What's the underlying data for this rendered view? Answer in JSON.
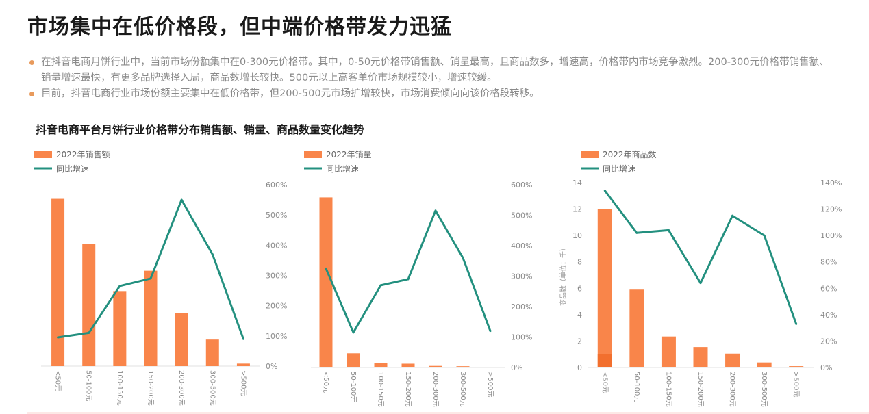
{
  "page": {
    "title": "市场集中在低价格段，但中端价格带发力迅猛",
    "bullets": [
      "在抖音电商月饼行业中，当前市场份额集中在0-300元价格带。其中，0-50元价格带销售额、销量最高，且商品数多，增速高，价格带内市场竞争激烈。200-300元价格带销售额、销量增速最快，有更多品牌选择入局，商品数增长较快。500元以上高客单价市场规模较小，增速较缓。",
      "目前，抖音电商行业市场份额主要集中在低价格带，但200-500元市场扩增较快，市场消费倾向向该价格段转移。"
    ],
    "section_title": "抖音电商平台月饼行业价格带分布销售额、销量、商品数量变化趋势",
    "colors": {
      "bar": "#f9854a",
      "bar_dark": "#f26f2e",
      "line": "#23907f",
      "axis_text": "#8a8a8a"
    }
  },
  "chart_data": [
    {
      "type": "bar",
      "legend": [
        "2022年销售额",
        "同比增速"
      ],
      "categories": [
        "<50元",
        "50-100元",
        "100-150元",
        "150-200元",
        "200-300元",
        "300-500元",
        ">500元"
      ],
      "series": [
        {
          "name": "2022年销售额",
          "type": "bar",
          "values": [
            5.35,
            3.9,
            2.4,
            3.05,
            1.7,
            0.85,
            0.08
          ]
        },
        {
          "name": "同比增速",
          "type": "line",
          "axis": "right",
          "values": [
            95,
            110,
            265,
            290,
            550,
            370,
            90
          ]
        }
      ],
      "y2_ticks": [
        "0%",
        "100%",
        "200%",
        "300%",
        "400%",
        "500%",
        "600%"
      ],
      "y2lim": [
        0,
        600
      ]
    },
    {
      "type": "bar",
      "legend": [
        "2022年销量",
        "同比增速"
      ],
      "categories": [
        "<50元",
        "50-100元",
        "100-150元",
        "150-200元",
        "200-300元",
        "300-500元",
        ">500元"
      ],
      "series": [
        {
          "name": "2022年销量",
          "type": "bar",
          "values": [
            5.4,
            0.45,
            0.15,
            0.12,
            0.05,
            0.04,
            0.02
          ]
        },
        {
          "name": "同比增速",
          "type": "line",
          "axis": "right",
          "values": [
            325,
            115,
            270,
            290,
            515,
            360,
            120
          ]
        }
      ],
      "y2_ticks": [
        "0%",
        "100%",
        "200%",
        "300%",
        "400%",
        "500%",
        "600%"
      ],
      "y2lim": [
        0,
        600
      ]
    },
    {
      "type": "bar",
      "legend": [
        "2022年商品数",
        "同比增速"
      ],
      "categories": [
        "<50元",
        "50-100元",
        "100-150元",
        "150-200元",
        "200-300元",
        "300-500元",
        ">500元"
      ],
      "series": [
        {
          "name": "2022年商品数",
          "type": "bar",
          "values": [
            12.0,
            5.9,
            2.35,
            1.55,
            1.05,
            0.38,
            0.1
          ],
          "inner_dark_first": 1.0
        },
        {
          "name": "同比增速",
          "type": "line",
          "axis": "right",
          "values": [
            134,
            102,
            104,
            64,
            115,
            100,
            33
          ]
        }
      ],
      "ylabel": "商品数（单位：千）",
      "y1_ticks": [
        "0",
        "2",
        "4",
        "6",
        "8",
        "10",
        "12",
        "14"
      ],
      "ylim": [
        0,
        14
      ],
      "y2_ticks": [
        "0%",
        "20%",
        "40%",
        "60%",
        "80%",
        "100%",
        "120%",
        "140%"
      ],
      "y2lim": [
        0,
        140
      ]
    }
  ]
}
